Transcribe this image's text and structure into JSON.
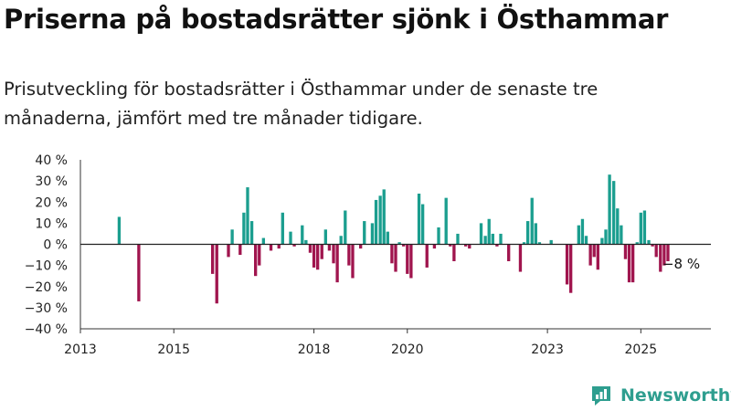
{
  "title": "Priserna på bostadsrätter sjönk i Östhammar",
  "subtitle": "Prisutveckling för bostadsrätter i Östhammar under de senaste tre månaderna, jämfört med tre månader tidigare.",
  "brand": {
    "name": "Newsworthy",
    "icon": "newsworthy-logo-icon",
    "color": "#2e9e8f"
  },
  "colors": {
    "positive": "#1b9e8f",
    "negative": "#a0154e",
    "axis": "#333333",
    "grid": "#d9d9d9"
  },
  "chart_data": {
    "type": "bar",
    "ylim": [
      -40,
      40
    ],
    "y_ticks": [
      -40,
      -30,
      -20,
      -10,
      0,
      10,
      20,
      30,
      40
    ],
    "y_tick_labels": [
      "−40 %",
      "−30 %",
      "−20 %",
      "−10 %",
      "0 %",
      "10 %",
      "20 %",
      "30 %",
      "40 %"
    ],
    "x_range": [
      2013.0,
      2026.5
    ],
    "x_ticks": [
      2013,
      2015,
      2018,
      2020,
      2023,
      2025
    ],
    "x_tick_labels": [
      "2013",
      "2015",
      "2018",
      "2020",
      "2023",
      "2025"
    ],
    "grid": false,
    "end_label": "−8 %",
    "series": [
      {
        "x": [
          2013.83,
          2014.25,
          2015.83,
          2015.92,
          2016.17,
          2016.25,
          2016.42,
          2016.5,
          2016.58,
          2016.67,
          2016.75,
          2016.83,
          2016.92,
          2017.08,
          2017.25,
          2017.33,
          2017.5,
          2017.58,
          2017.75,
          2017.83,
          2017.92,
          2018.0,
          2018.08,
          2018.17,
          2018.25,
          2018.33,
          2018.42,
          2018.5,
          2018.58,
          2018.67,
          2018.75,
          2018.83,
          2019.0,
          2019.08,
          2019.25,
          2019.33,
          2019.42,
          2019.5,
          2019.58,
          2019.67,
          2019.75,
          2019.83,
          2019.92,
          2020.0,
          2020.08,
          2020.25,
          2020.33,
          2020.42,
          2020.58,
          2020.67,
          2020.83,
          2020.92,
          2021.0,
          2021.08,
          2021.25,
          2021.33,
          2021.58,
          2021.67,
          2021.75,
          2021.83,
          2021.92,
          2022.0,
          2022.17,
          2022.42,
          2022.5,
          2022.58,
          2022.67,
          2022.75,
          2022.83,
          2023.08,
          2023.42,
          2023.5,
          2023.67,
          2023.75,
          2023.83,
          2023.92,
          2024.0,
          2024.08,
          2024.17,
          2024.25,
          2024.33,
          2024.42,
          2024.5,
          2024.58,
          2024.67,
          2024.75,
          2024.83,
          2024.92,
          2025.0,
          2025.08,
          2025.17,
          2025.25,
          2025.33,
          2025.42,
          2025.5,
          2025.58
        ],
        "values": [
          13,
          -27,
          -14,
          -28,
          -6,
          7,
          -5,
          15,
          27,
          11,
          -15,
          -10,
          3,
          -3,
          -2,
          15,
          6,
          -1,
          9,
          2,
          -4,
          -11,
          -12,
          -7,
          7,
          -3,
          -9,
          -18,
          4,
          16,
          -10,
          -16,
          -2,
          11,
          10,
          21,
          23,
          26,
          6,
          -9,
          -13,
          1,
          -1,
          -14,
          -16,
          24,
          19,
          -11,
          -2,
          8,
          22,
          -1,
          -8,
          5,
          -1,
          -2,
          10,
          4,
          12,
          5,
          -1,
          5,
          -8,
          -13,
          1,
          11,
          22,
          10,
          1,
          2,
          -19,
          -23,
          9,
          12,
          4,
          -10,
          -6,
          -12,
          3,
          7,
          33,
          30,
          17,
          9,
          -7,
          -18,
          -18,
          1,
          15,
          16,
          2,
          -1,
          -6,
          -13,
          -10,
          -8
        ]
      }
    ]
  }
}
